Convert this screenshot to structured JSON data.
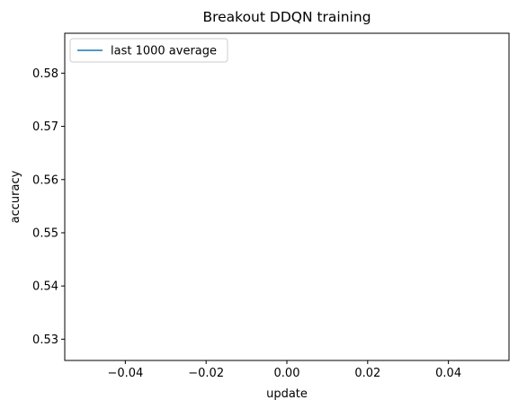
{
  "chart_data": {
    "type": "line",
    "title": "Breakout DDQN training",
    "xlabel": "update",
    "ylabel": "accuracy",
    "xlim": [
      -0.055,
      0.055
    ],
    "ylim": [
      0.526,
      0.5875
    ],
    "xticks": [
      -0.04,
      -0.02,
      0.0,
      0.02,
      0.04
    ],
    "xtick_labels": [
      "−0.04",
      "−0.02",
      "0.00",
      "0.02",
      "0.04"
    ],
    "yticks": [
      0.53,
      0.54,
      0.55,
      0.56,
      0.57,
      0.58
    ],
    "ytick_labels": [
      "0.53",
      "0.54",
      "0.55",
      "0.56",
      "0.57",
      "0.58"
    ],
    "grid": false,
    "legend_position": "upper-left",
    "series": [
      {
        "name": "last 1000 average",
        "color": "#1f77b4",
        "x": [],
        "y": []
      }
    ]
  }
}
